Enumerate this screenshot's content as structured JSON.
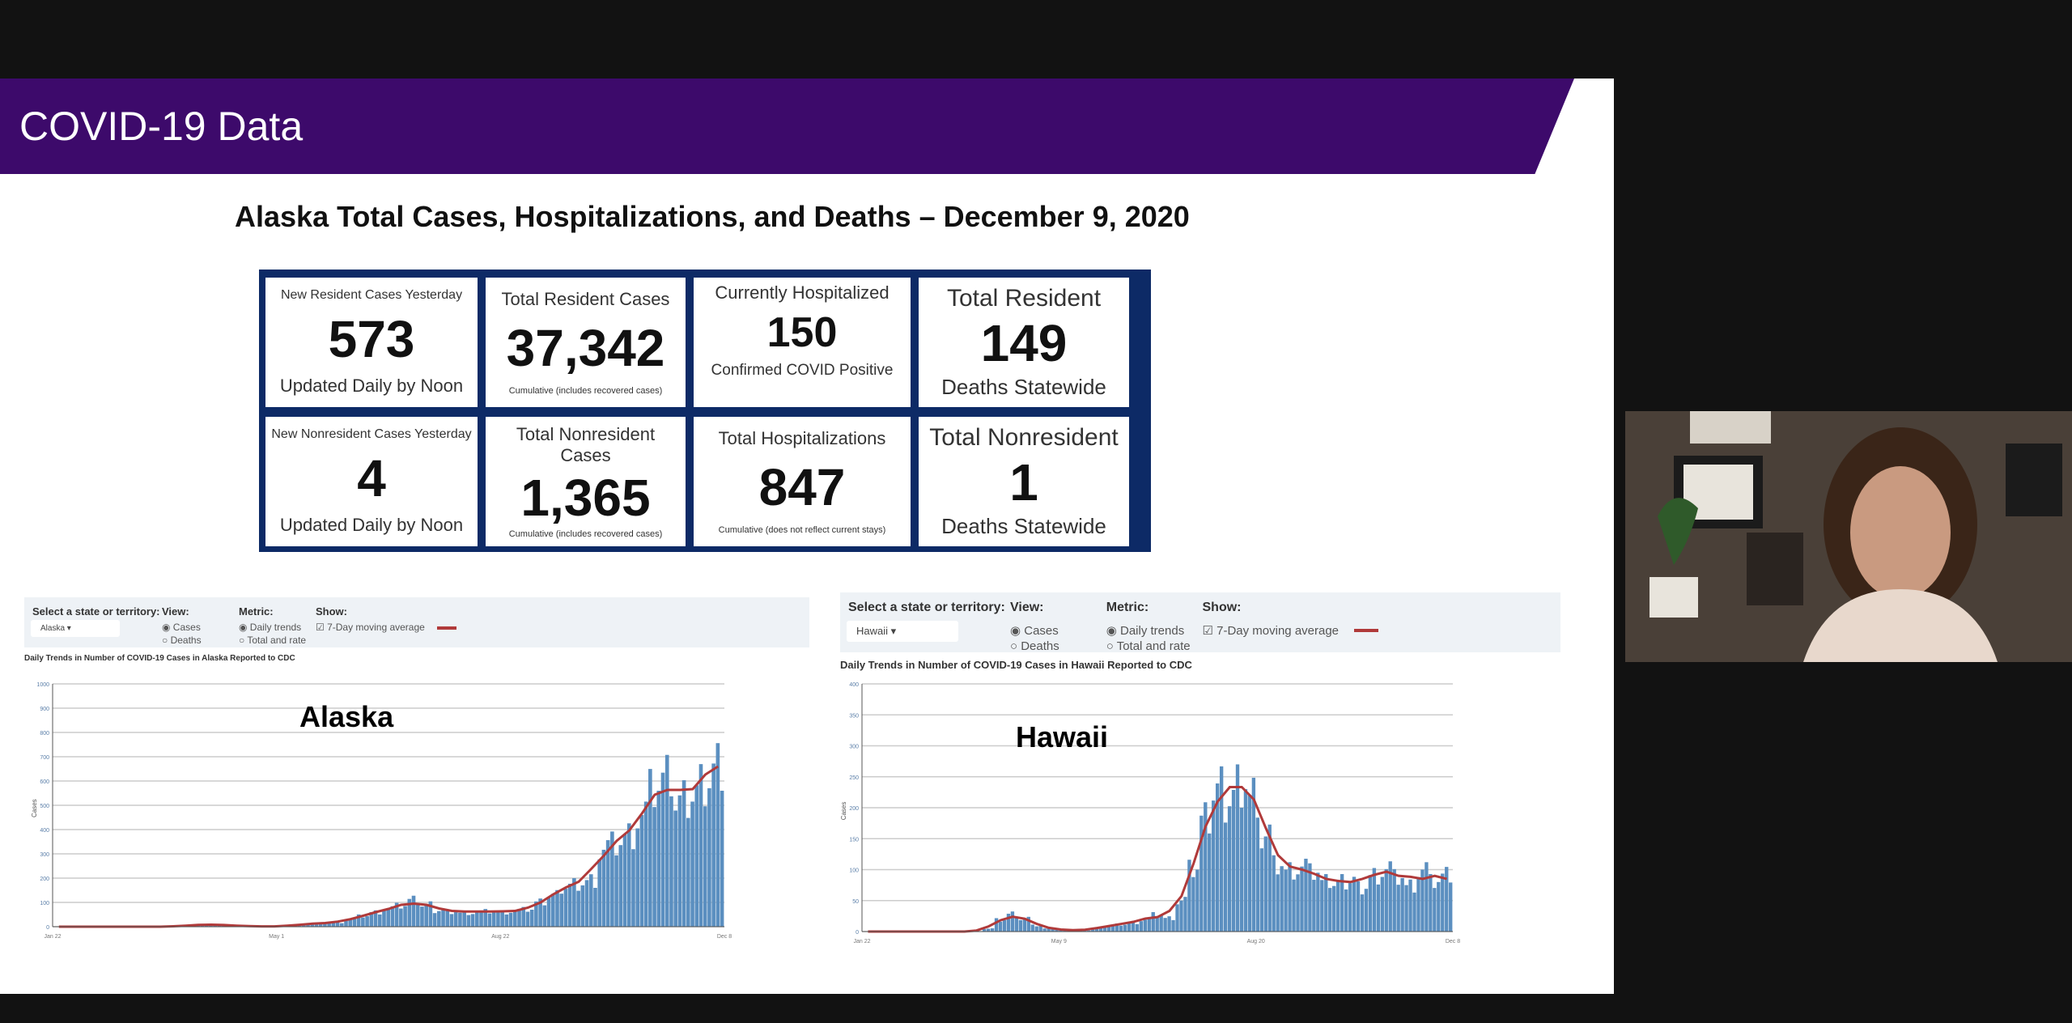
{
  "slide": {
    "title": "COVID-19 Data",
    "heading": "Alaska Total Cases, Hospitalizations, and Deaths – December 9, 2020"
  },
  "stats": [
    {
      "title": "New Resident Cases Yesterday",
      "value": "573",
      "sub": "Updated Daily by Noon"
    },
    {
      "title": "Total Resident Cases",
      "value": "37,342",
      "sub": "Cumulative (includes recovered cases)"
    },
    {
      "title": "Currently Hospitalized",
      "value": "150",
      "sub": "Confirmed COVID Positive"
    },
    {
      "title": "Total Resident",
      "value": "149",
      "sub": "Deaths Statewide"
    },
    {
      "title": "New Nonresident Cases Yesterday",
      "value": "4",
      "sub": "Updated Daily by Noon"
    },
    {
      "title": "Total Nonresident Cases",
      "value": "1,365",
      "sub": "Cumulative (includes recovered cases)"
    },
    {
      "title": "Total Hospitalizations",
      "value": "847",
      "sub": "Cumulative (does not reflect current stays)"
    },
    {
      "title": "Total Nonresident",
      "value": "1",
      "sub": "Deaths Statewide"
    }
  ],
  "controls": {
    "select_label": "Select a state or territory:",
    "view_label": "View:",
    "view_cases": "Cases",
    "view_deaths": "Deaths",
    "metric_label": "Metric:",
    "metric_daily": "Daily trends",
    "metric_total": "Total and rate",
    "show_label": "Show:",
    "show_avg": "7-Day moving average"
  },
  "colors": {
    "bar": "#5b8fc0",
    "line": "#b03a3a",
    "banner": "#3d0a6b",
    "grid_border": "#0d2a66"
  },
  "chart_data": [
    {
      "type": "bar",
      "state": "Alaska",
      "overlay": "Alaska",
      "title": "Daily Trends in Number of COVID-19 Cases in Alaska Reported to CDC",
      "ylabel": "Cases",
      "ylim": [
        0,
        1000
      ],
      "yticks": [
        0,
        100,
        200,
        300,
        400,
        500,
        600,
        700,
        800,
        900,
        1000
      ],
      "xticks": [
        "Jan 22",
        "May 1",
        "Aug 22",
        "Dec 8"
      ],
      "values": [
        0,
        0,
        0,
        0,
        0,
        0,
        0,
        0,
        0,
        0,
        5,
        8,
        10,
        7,
        4,
        2,
        1,
        1,
        2,
        10,
        12,
        15,
        18,
        30,
        45,
        60,
        75,
        85,
        110,
        90,
        70,
        65,
        60,
        62,
        65,
        60,
        65,
        70,
        100,
        130,
        170,
        185,
        200,
        330,
        350,
        380,
        460,
        560,
        610,
        520,
        560,
        620,
        700
      ]
    },
    {
      "type": "bar",
      "state": "Hawaii",
      "overlay": "Hawaii",
      "title": "Daily Trends in Number of COVID-19 Cases in Hawaii Reported to CDC",
      "ylabel": "Cases",
      "ylim": [
        0,
        400
      ],
      "yticks": [
        0,
        50,
        100,
        150,
        200,
        250,
        300,
        350,
        400
      ],
      "xticks": [
        "Jan 22",
        "May 9",
        "Aug 20",
        "Dec 8"
      ],
      "values": [
        0,
        0,
        0,
        0,
        0,
        0,
        0,
        0,
        0,
        0,
        5,
        20,
        30,
        22,
        10,
        5,
        3,
        2,
        2,
        5,
        10,
        12,
        15,
        20,
        28,
        22,
        50,
        100,
        180,
        230,
        220,
        250,
        230,
        160,
        110,
        100,
        105,
        95,
        80,
        80,
        85,
        75,
        95,
        105,
        90,
        75,
        100,
        80,
        90
      ]
    }
  ]
}
